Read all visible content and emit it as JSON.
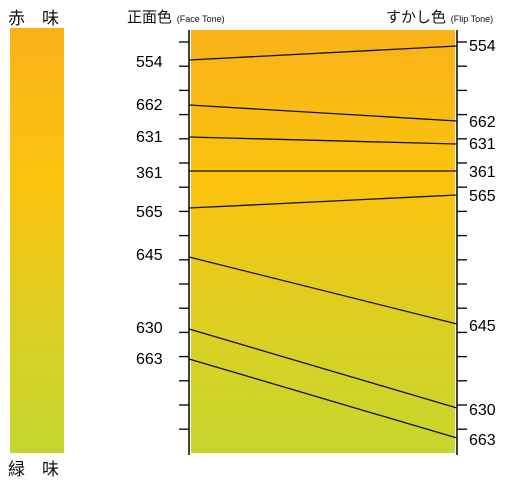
{
  "scale": {
    "top_label": "赤　味",
    "bottom_label": "緑　味",
    "gradient_top": "#f9b21a",
    "gradient_bottom": "#c3d72e"
  },
  "headers": {
    "face": {
      "main": "正面色",
      "sub": "(Face Tone)"
    },
    "flip": {
      "main": "すかし色",
      "sub": "(Flip Tone)"
    }
  },
  "face_codes": [
    "554",
    "662",
    "631",
    "361",
    "565",
    "645",
    "630",
    "663"
  ],
  "flip_codes": [
    "554",
    "662",
    "631",
    "361",
    "565",
    "645",
    "630",
    "663"
  ],
  "colors": {
    "line": "#111111",
    "panel_top": "#f9b21a",
    "panel_mid": "#fbc30e",
    "panel_bottom": "#c6d62d"
  }
}
